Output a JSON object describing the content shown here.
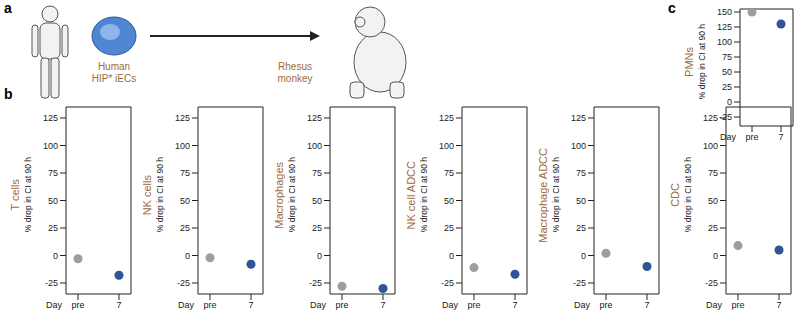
{
  "panel_labels": [
    "a",
    "b",
    "c"
  ],
  "illustration": {
    "donor_label": [
      "Human",
      "HIP* iECs"
    ],
    "recipient_label": [
      "Rhesus",
      "monkey"
    ]
  },
  "chart_data": [
    {
      "type": "scatter",
      "panel": "b",
      "title": "T cells",
      "y_label": "% drop in CI at 90 h",
      "x_label": "Day",
      "categories": [
        "pre",
        "7"
      ],
      "values": [
        -3,
        -18
      ],
      "colors": [
        "#9e9e9e",
        "#2f5597"
      ],
      "ylim": [
        -35,
        135
      ],
      "yticks": [
        -25,
        0,
        25,
        50,
        75,
        100,
        125
      ]
    },
    {
      "type": "scatter",
      "panel": "b",
      "title": "NK cells",
      "y_label": "% drop in CI at 90 h",
      "x_label": "Day",
      "categories": [
        "pre",
        "7"
      ],
      "values": [
        -2,
        -8
      ],
      "colors": [
        "#9e9e9e",
        "#2f5597"
      ],
      "ylim": [
        -35,
        135
      ],
      "yticks": [
        -25,
        0,
        25,
        50,
        75,
        100,
        125
      ]
    },
    {
      "type": "scatter",
      "panel": "b",
      "title": "Macrophages",
      "y_label": "% drop in CI at 90 h",
      "x_label": "Day",
      "categories": [
        "pre",
        "7"
      ],
      "values": [
        -28,
        -30
      ],
      "colors": [
        "#9e9e9e",
        "#2f5597"
      ],
      "ylim": [
        -35,
        135
      ],
      "yticks": [
        -25,
        0,
        25,
        50,
        75,
        100,
        125
      ]
    },
    {
      "type": "scatter",
      "panel": "b",
      "title": "NK cell ADCC",
      "y_label": "% drop in CI at 90 h",
      "x_label": "Day",
      "categories": [
        "pre",
        "7"
      ],
      "values": [
        -11,
        -17
      ],
      "colors": [
        "#9e9e9e",
        "#2f5597"
      ],
      "ylim": [
        -35,
        135
      ],
      "yticks": [
        -25,
        0,
        25,
        50,
        75,
        100,
        125
      ]
    },
    {
      "type": "scatter",
      "panel": "b",
      "title": "Macrophage ADCC",
      "y_label": "% drop in CI at 90 h",
      "x_label": "Day",
      "categories": [
        "pre",
        "7"
      ],
      "values": [
        2,
        -10
      ],
      "colors": [
        "#9e9e9e",
        "#2f5597"
      ],
      "ylim": [
        -35,
        135
      ],
      "yticks": [
        -25,
        0,
        25,
        50,
        75,
        100,
        125
      ]
    },
    {
      "type": "scatter",
      "panel": "b",
      "title": "CDC",
      "y_label": "% drop in CI at 90 h",
      "x_label": "Day",
      "categories": [
        "pre",
        "7"
      ],
      "values": [
        9,
        5
      ],
      "colors": [
        "#9e9e9e",
        "#2f5597"
      ],
      "ylim": [
        -35,
        135
      ],
      "yticks": [
        -25,
        0,
        25,
        50,
        75,
        100,
        125
      ]
    },
    {
      "type": "scatter",
      "panel": "c",
      "title": "PMNs",
      "y_label": "% drop in CI at 90 h",
      "x_label": "Day",
      "categories": [
        "pre",
        "7"
      ],
      "values": [
        150,
        130
      ],
      "colors": [
        "#9e9e9e",
        "#2f5597"
      ],
      "ylim": [
        -40,
        155
      ],
      "yticks": [
        -25,
        0,
        25,
        50,
        75,
        100,
        125,
        150
      ]
    }
  ]
}
